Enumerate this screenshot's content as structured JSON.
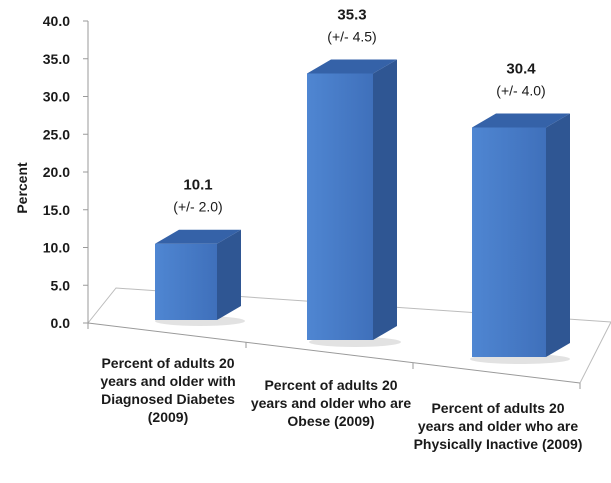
{
  "chart_data": {
    "type": "bar",
    "title": "",
    "xlabel": "",
    "ylabel": "Percent",
    "ylim": [
      0,
      40
    ],
    "yticks": [
      "0.0",
      "5.0",
      "10.0",
      "15.0",
      "20.0",
      "25.0",
      "30.0",
      "35.0",
      "40.0"
    ],
    "categories": [
      "Percent of adults 20 years and older with Diagnosed Diabetes (2009)",
      "Percent of adults 20 years and older who are Obese (2009)",
      "Percent of adults 20 years and older who are Physically Inactive (2009)"
    ],
    "values": [
      10.1,
      35.3,
      30.4
    ],
    "value_labels": [
      "10.1",
      "35.3",
      "30.4"
    ],
    "error_labels": [
      "(+/- 2.0)",
      "(+/- 4.5)",
      "(+/- 4.0)"
    ],
    "bar_color": "#4a7cc7",
    "style": "3d-column"
  }
}
